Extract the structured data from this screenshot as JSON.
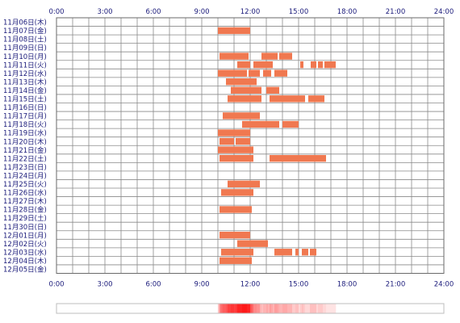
{
  "chart_data": {
    "type": "timeline",
    "xlim": [
      0,
      24
    ],
    "x_ticks": [
      "0:00",
      "3:00",
      "6:00",
      "9:00",
      "12:00",
      "15:00",
      "18:00",
      "21:00",
      "24:00"
    ],
    "bar_color": "#f07850",
    "grid_color": "#8a8a8a",
    "heat_colors": {
      "low": "#fff2f2",
      "high": "#ff1818"
    },
    "rows": [
      {
        "label": "11月06日(木)",
        "bars": []
      },
      {
        "label": "11月07日(金)",
        "bars": [
          [
            10.0,
            12.0
          ]
        ]
      },
      {
        "label": "11月08日(土)",
        "bars": []
      },
      {
        "label": "11月09日(日)",
        "bars": []
      },
      {
        "label": "11月10日(月)",
        "bars": [
          [
            10.1,
            11.9
          ],
          [
            12.7,
            13.7
          ],
          [
            13.8,
            14.6
          ]
        ]
      },
      {
        "label": "11月11日(火)",
        "bars": [
          [
            11.2,
            12.0
          ],
          [
            12.2,
            13.4
          ],
          [
            15.1,
            15.3
          ],
          [
            15.75,
            16.1
          ],
          [
            16.2,
            16.5
          ],
          [
            16.6,
            17.3
          ]
        ]
      },
      {
        "label": "11月12日(水)",
        "bars": [
          [
            10.0,
            11.8
          ],
          [
            11.9,
            12.6
          ],
          [
            12.8,
            13.3
          ],
          [
            13.5,
            14.3
          ]
        ]
      },
      {
        "label": "11月13日(木)",
        "bars": [
          [
            10.5,
            12.4
          ]
        ]
      },
      {
        "label": "11月14日(金)",
        "bars": [
          [
            10.8,
            12.7
          ],
          [
            13.0,
            13.8
          ]
        ]
      },
      {
        "label": "11月15日(土)",
        "bars": [
          [
            10.6,
            12.7
          ],
          [
            13.2,
            15.4
          ],
          [
            15.6,
            16.6
          ]
        ]
      },
      {
        "label": "11月16日(日)",
        "bars": []
      },
      {
        "label": "11月17日(月)",
        "bars": [
          [
            10.3,
            12.6
          ]
        ]
      },
      {
        "label": "11月18日(火)",
        "bars": [
          [
            11.5,
            13.8
          ],
          [
            14.0,
            15.0
          ]
        ]
      },
      {
        "label": "11月19日(水)",
        "bars": [
          [
            10.0,
            12.0
          ]
        ]
      },
      {
        "label": "11月20日(木)",
        "bars": [
          [
            10.1,
            11.0
          ],
          [
            11.1,
            12.0
          ]
        ]
      },
      {
        "label": "11月21日(金)",
        "bars": [
          [
            10.0,
            12.2
          ]
        ]
      },
      {
        "label": "11月22日(土)",
        "bars": [
          [
            10.1,
            12.2
          ],
          [
            13.2,
            16.7
          ]
        ]
      },
      {
        "label": "11月23日(日)",
        "bars": []
      },
      {
        "label": "11月24日(月)",
        "bars": []
      },
      {
        "label": "11月25日(火)",
        "bars": [
          [
            10.6,
            12.6
          ]
        ]
      },
      {
        "label": "11月26日(水)",
        "bars": [
          [
            10.2,
            12.2
          ]
        ]
      },
      {
        "label": "11月27日(木)",
        "bars": []
      },
      {
        "label": "11月28日(金)",
        "bars": [
          [
            10.1,
            12.1
          ]
        ]
      },
      {
        "label": "11月29日(土)",
        "bars": []
      },
      {
        "label": "11月30日(日)",
        "bars": []
      },
      {
        "label": "12月01日(月)",
        "bars": [
          [
            10.1,
            12.0
          ]
        ]
      },
      {
        "label": "12月02日(火)",
        "bars": [
          [
            11.2,
            13.1
          ]
        ]
      },
      {
        "label": "12月03日(水)",
        "bars": [
          [
            10.2,
            12.2
          ],
          [
            13.5,
            14.6
          ],
          [
            14.8,
            15.0
          ],
          [
            15.2,
            15.6
          ],
          [
            15.7,
            16.1
          ]
        ]
      },
      {
        "label": "12月04日(木)",
        "bars": [
          [
            10.1,
            12.1
          ]
        ]
      },
      {
        "label": "12月05日(金)",
        "bars": []
      }
    ]
  }
}
